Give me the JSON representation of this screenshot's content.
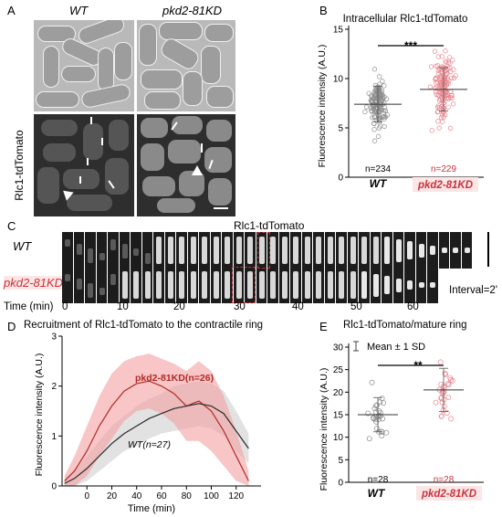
{
  "panels": {
    "A": {
      "letter": "A",
      "col_labels": [
        "WT",
        "pkd2-81KD"
      ],
      "row_label": "Rlc1-tdTomato"
    },
    "B": {
      "letter": "B",
      "title": "Intracellular Rlc1-tdTomato",
      "ylabel": "Fluorescence intensity (A.U.)",
      "significance": "***",
      "counts": [
        "n=234",
        "n=229"
      ],
      "xlabels": [
        "WT",
        "pkd2-81KD"
      ]
    },
    "C": {
      "letter": "C",
      "title": "Rlc1-tdTomato",
      "row_labels": [
        "WT",
        "pkd2-81KD"
      ],
      "time_label": "Time (min)",
      "interval": "Interval=2'",
      "ticks": [
        "0",
        "10",
        "20",
        "30",
        "40",
        "50",
        "60"
      ]
    },
    "D": {
      "letter": "D",
      "title": "Recruitment of Rlc1-tdTomato to the contractile ring",
      "ylabel": "Fluorescence intensity (A.U.)",
      "xlabel": "Time (min)",
      "series_labels": [
        "pkd2-81KD(n=26)",
        "WT(n=27)"
      ]
    },
    "E": {
      "letter": "E",
      "title": "Rlc1-tdTomato/mature ring",
      "legend": "Mean ± 1 SD",
      "ylabel": "Fluorescence intensity (A.U.)",
      "significance": "**",
      "counts": [
        "n=28",
        "n=28"
      ],
      "xlabels": [
        "WT",
        "pkd2-81KD"
      ]
    }
  },
  "chart_data": [
    {
      "id": "B",
      "type": "scatter",
      "title": "Intracellular Rlc1-tdTomato",
      "ylabel": "Fluorescence intensity (A.U.)",
      "categories": [
        "WT",
        "pkd2-81KD"
      ],
      "ylim": [
        0,
        15
      ],
      "yticks": [
        0,
        5,
        10,
        15
      ],
      "means": [
        7.4,
        8.9
      ],
      "sd": [
        1.8,
        2.2
      ],
      "n": [
        234,
        229
      ],
      "colors": [
        "#8c8c8c",
        "#e8848c"
      ]
    },
    {
      "id": "D",
      "type": "line",
      "title": "Recruitment of Rlc1-tdTomato to the contractile ring",
      "xlabel": "Time (min)",
      "ylabel": "Fluorescence intensity (A.U.)",
      "xlim": [
        -20,
        140
      ],
      "ylim": [
        0,
        3
      ],
      "xticks": [
        0,
        20,
        40,
        60,
        80,
        100,
        120
      ],
      "yticks": [
        0,
        1,
        2,
        3
      ],
      "series": [
        {
          "name": "pkd2-81KD(n=26)",
          "color": "#b02a2a",
          "band_color": "#f4a0a0",
          "x": [
            -18,
            -10,
            0,
            10,
            20,
            30,
            40,
            50,
            60,
            70,
            80,
            90,
            100,
            110,
            120,
            130
          ],
          "y": [
            0.1,
            0.3,
            0.7,
            1.2,
            1.6,
            1.9,
            2.05,
            2.1,
            2.0,
            1.85,
            1.6,
            1.7,
            1.5,
            1.1,
            0.6,
            0.1
          ],
          "sd": [
            0.1,
            0.3,
            0.5,
            0.6,
            0.65,
            0.6,
            0.55,
            0.55,
            0.55,
            0.6,
            0.7,
            0.8,
            0.8,
            0.7,
            0.5,
            0.2
          ]
        },
        {
          "name": "WT(n=27)",
          "color": "#2a2a2a",
          "band_color": "#cfcfcf",
          "x": [
            -18,
            -10,
            0,
            10,
            20,
            30,
            40,
            50,
            60,
            70,
            80,
            90,
            100,
            110,
            120,
            130
          ],
          "y": [
            0.05,
            0.15,
            0.35,
            0.6,
            0.85,
            1.05,
            1.2,
            1.35,
            1.45,
            1.55,
            1.6,
            1.65,
            1.6,
            1.45,
            1.1,
            0.75
          ],
          "sd": [
            0.05,
            0.15,
            0.25,
            0.3,
            0.35,
            0.35,
            0.4,
            0.4,
            0.4,
            0.45,
            0.45,
            0.45,
            0.45,
            0.45,
            0.4,
            0.3
          ]
        }
      ]
    },
    {
      "id": "E",
      "type": "scatter",
      "title": "Rlc1-tdTomato/mature ring",
      "ylabel": "Fluorescence intensity (A.U.)",
      "categories": [
        "WT",
        "pkd2-81KD"
      ],
      "ylim": [
        0,
        30
      ],
      "yticks": [
        0,
        5,
        10,
        15,
        20,
        25,
        30
      ],
      "means": [
        15,
        20.5
      ],
      "sd": [
        3.8,
        4.8
      ],
      "n": [
        28,
        28
      ],
      "colors": [
        "#8c8c8c",
        "#e8848c"
      ]
    }
  ]
}
